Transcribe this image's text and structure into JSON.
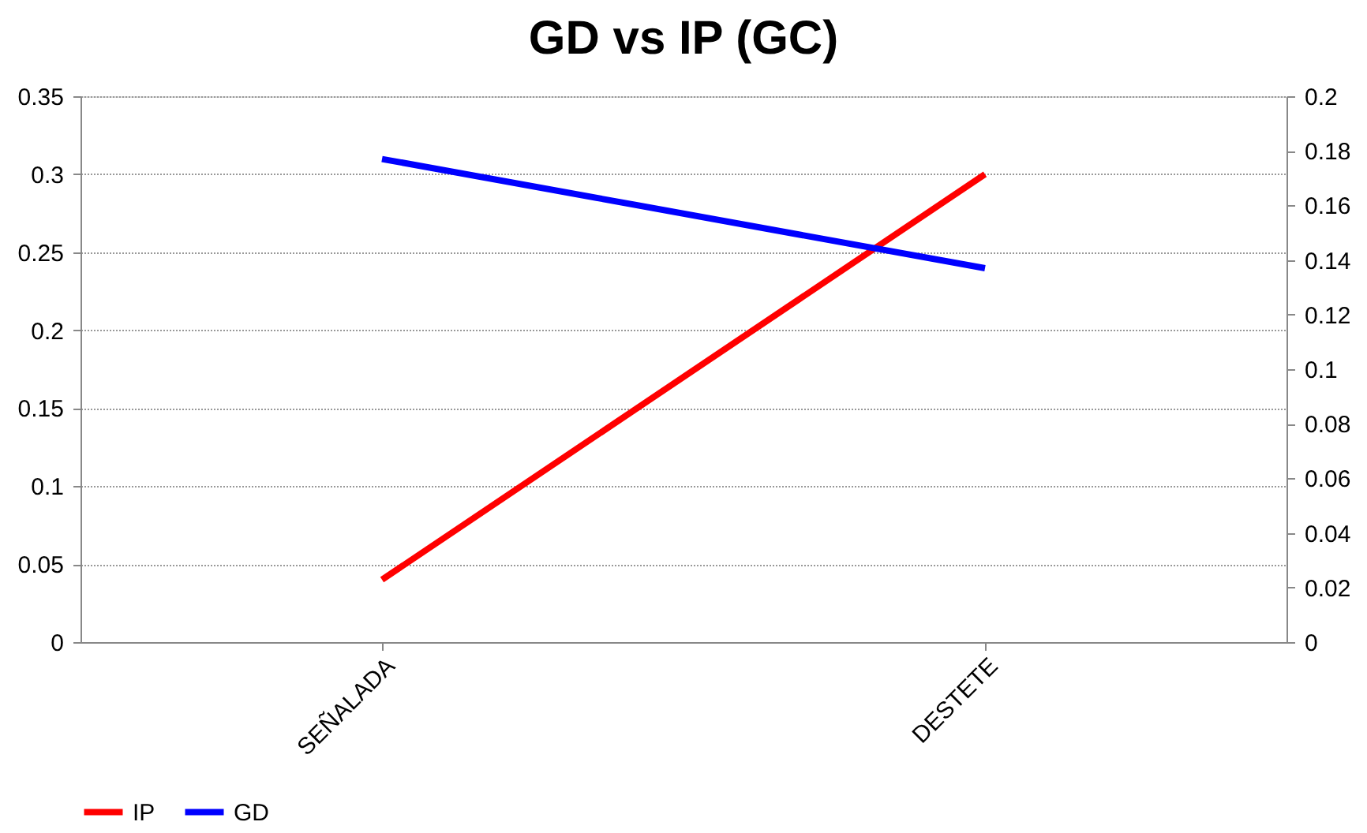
{
  "chart_data": {
    "type": "line",
    "title": "GD vs IP (GC)",
    "categories": [
      "SEÑALADA",
      "DESTETE"
    ],
    "series": [
      {
        "name": "IP",
        "color": "#ff0000",
        "values": [
          0.04,
          0.3
        ]
      },
      {
        "name": "GD",
        "color": "#0000ff",
        "values": [
          0.177,
          0.137
        ],
        "axis": "y2"
      }
    ],
    "ylim": [
      0,
      0.35
    ],
    "yticks": [
      0,
      0.05,
      0.1,
      0.15,
      0.2,
      0.25,
      0.3,
      0.35
    ],
    "y2lim": [
      0,
      0.2
    ],
    "y2ticks": [
      0,
      0.02,
      0.04,
      0.06,
      0.08,
      0.1,
      0.12,
      0.14,
      0.16,
      0.18,
      0.2
    ],
    "grid": "y",
    "legend": "bottom",
    "line_style": "solid",
    "marker": "none"
  }
}
